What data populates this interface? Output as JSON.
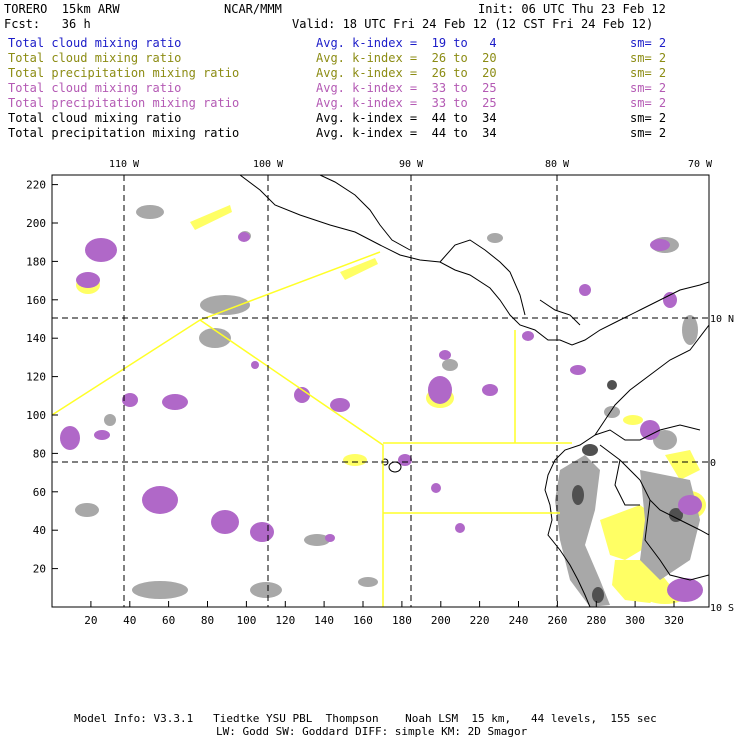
{
  "header": {
    "model": "TORERO  15km ARW",
    "center": "NCAR/MMM",
    "init": "Init: 06 UTC Thu 23 Feb 12",
    "fcst": "Fcst:   36 h",
    "valid": "Valid: 18 UTC Fri 24 Feb 12 (12 CST Fri 24 Feb 12)"
  },
  "legend": [
    {
      "field": "Total cloud mixing ratio",
      "stat": "Avg. k-index =  19 to   4",
      "sm": "sm= 2",
      "color": "#1c1cc8"
    },
    {
      "field": "Total cloud mixing ratio",
      "stat": "Avg. k-index =  26 to  20",
      "sm": "sm= 2",
      "color": "#8c8c14"
    },
    {
      "field": "Total precipitation mixing ratio",
      "stat": "Avg. k-index =  26 to  20",
      "sm": "sm= 2",
      "color": "#8c8c14"
    },
    {
      "field": "Total cloud mixing ratio",
      "stat": "Avg. k-index =  33 to  25",
      "sm": "sm= 2",
      "color": "#b45ab4"
    },
    {
      "field": "Total precipitation mixing ratio",
      "stat": "Avg. k-index =  33 to  25",
      "sm": "sm= 2",
      "color": "#b45ab4"
    },
    {
      "field": "Total cloud mixing ratio",
      "stat": "Avg. k-index =  44 to  34",
      "sm": "sm= 2",
      "color": "#000000"
    },
    {
      "field": "Total precipitation mixing ratio",
      "stat": "Avg. k-index =  44 to  34",
      "sm": "sm= 2",
      "color": "#000000"
    }
  ],
  "map": {
    "longitude_labels": [
      "110 W",
      "100 W",
      "90 W",
      "80 W",
      "70 W"
    ],
    "latitude_labels": [
      "10 N",
      "0",
      "10 S"
    ],
    "x_ticks": [
      "20",
      "40",
      "60",
      "80",
      "100",
      "120",
      "140",
      "160",
      "180",
      "200",
      "220",
      "240",
      "260",
      "280",
      "300",
      "320"
    ],
    "y_ticks": [
      "20",
      "40",
      "60",
      "80",
      "100",
      "120",
      "140",
      "160",
      "180",
      "200",
      "220"
    ],
    "colors": {
      "cloud_gray": "#a8a8a8",
      "precip_purple": "#b068c8",
      "light_yellow": "#ffff64",
      "domain_outline": "#ffff28"
    }
  },
  "footer": {
    "line1": "Model Info: V3.3.1   Tiedtke YSU PBL  Thompson    Noah LSM  15 km,   44 levels,  155 sec",
    "line2": "LW: Godd SW: Goddard DIFF: simple KM: 2D Smagor"
  }
}
